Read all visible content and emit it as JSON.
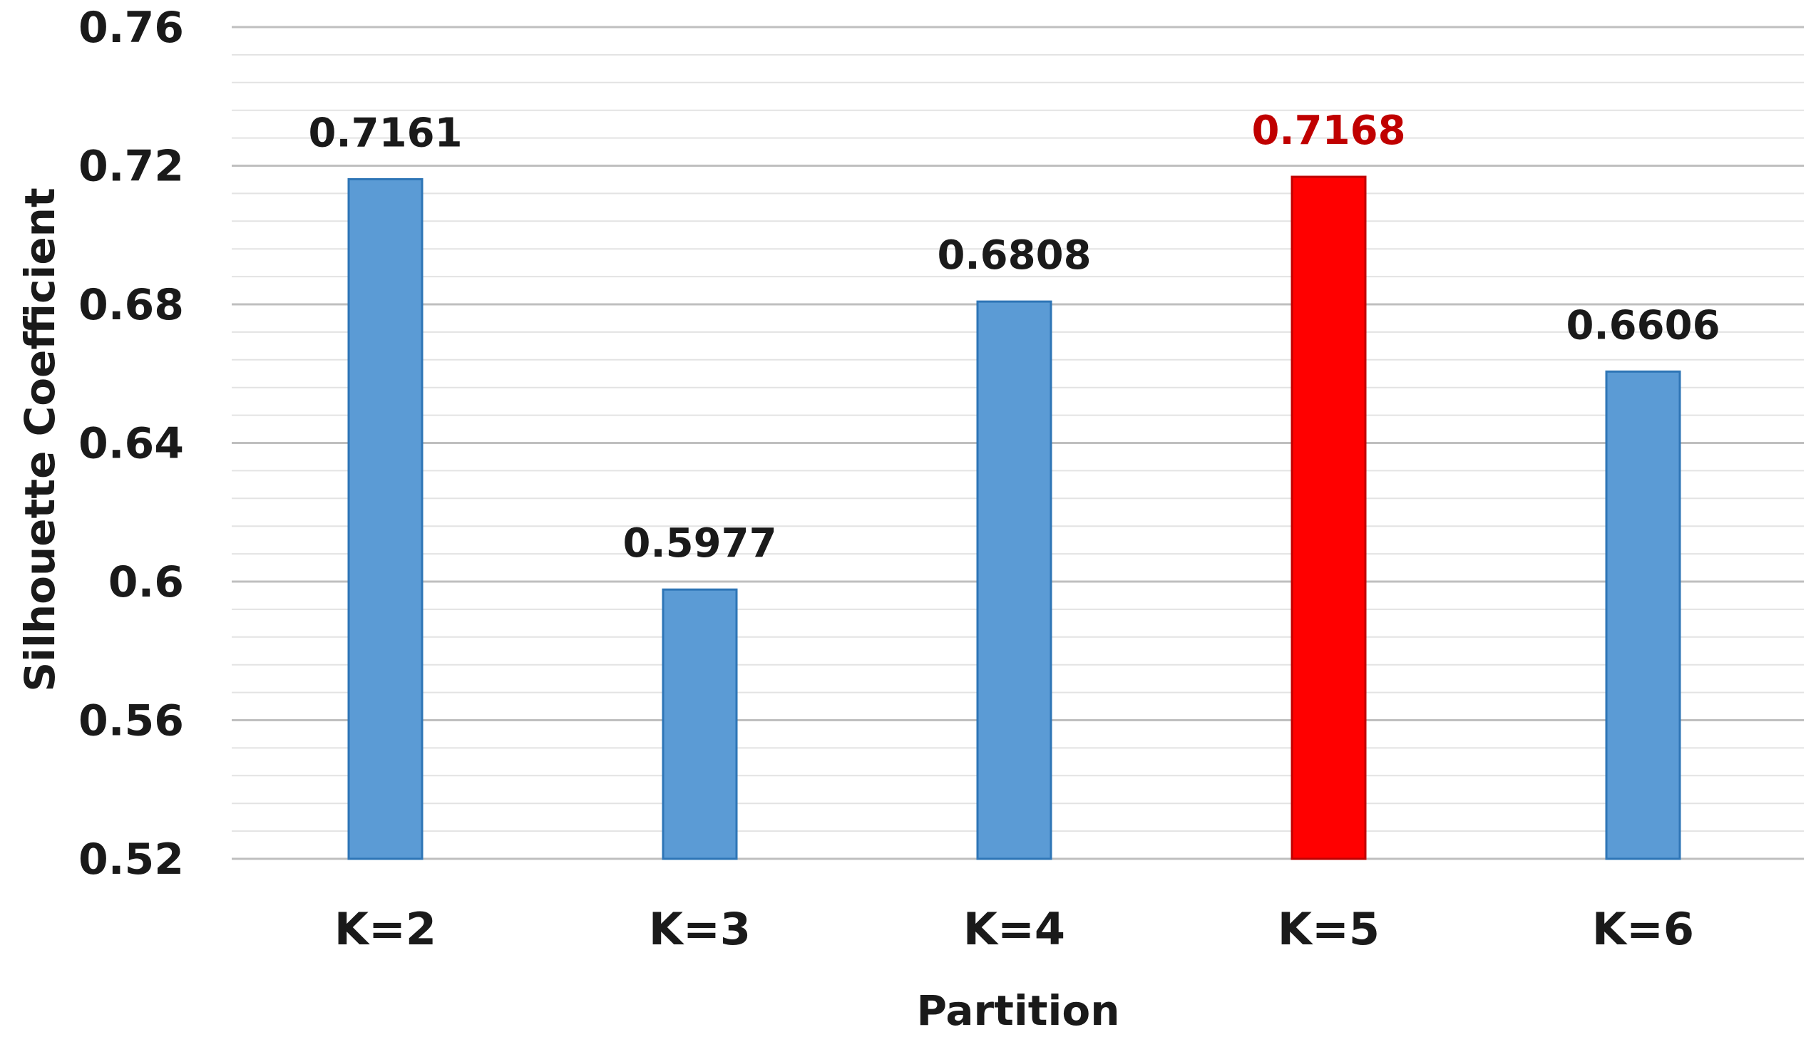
{
  "chart_data": {
    "type": "bar",
    "categories": [
      "K=2",
      "K=3",
      "K=4",
      "K=5",
      "K=6"
    ],
    "values": [
      0.7161,
      0.5977,
      0.6808,
      0.7168,
      0.6606
    ],
    "data_labels": [
      "0.7161",
      "0.5977",
      "0.6808",
      "0.7168",
      "0.6606"
    ],
    "highlight_index": 3,
    "xlabel": "Partition",
    "ylabel": "Silhouette Coefficient",
    "ylim": [
      0.52,
      0.76
    ],
    "yticks": [
      0.52,
      0.56,
      0.6,
      0.64,
      0.68,
      0.72,
      0.76
    ],
    "ytick_labels": [
      "0.52",
      "0.56",
      "0.6",
      "0.64",
      "0.68",
      "0.72",
      "0.76"
    ],
    "minor_grid_step": 0.008,
    "grid": true,
    "legend": "none",
    "colors": {
      "bar": "#5b9bd5",
      "bar_edge": "#2e75b6",
      "highlight": "#ff0000",
      "highlight_edge": "#c00000",
      "highlight_label": "#c00000",
      "major_grid": "#bfbfbf",
      "minor_grid": "#e3e3e3",
      "text": "#1a1a1a"
    }
  }
}
